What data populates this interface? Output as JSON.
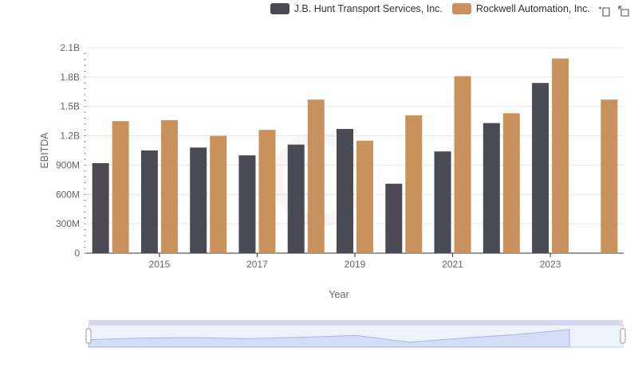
{
  "chart_data": {
    "type": "bar",
    "title": "",
    "xlabel": "Year",
    "ylabel": "EBITDA",
    "ylim": [
      0,
      2100000000
    ],
    "y_ticks": [
      "0",
      "300M",
      "600M",
      "900M",
      "1.2B",
      "1.5B",
      "1.8B",
      "2.1B"
    ],
    "x_tick_labels": [
      "2015",
      "2017",
      "2019",
      "2021",
      "2023"
    ],
    "categories": [
      "2014",
      "2015",
      "2016",
      "2017",
      "2018",
      "2019",
      "2020",
      "2021",
      "2022",
      "2023",
      "2024"
    ],
    "series": [
      {
        "name": "J.B. Hunt Transport Services, Inc.",
        "color": "#4a4a55",
        "values": [
          920000000,
          1050000000,
          1080000000,
          1000000000,
          1110000000,
          1270000000,
          710000000,
          1040000000,
          1330000000,
          1740000000,
          null
        ]
      },
      {
        "name": "Rockwell Automation, Inc.",
        "color": "#c9925c",
        "values": [
          1350000000,
          1360000000,
          1200000000,
          1260000000,
          1570000000,
          1150000000,
          1410000000,
          1810000000,
          1430000000,
          1990000000,
          1570000000
        ]
      }
    ],
    "grid": true,
    "legend_position": "top-right"
  },
  "toolbox": {
    "zoom_icon": "zoom-icon",
    "restore_icon": "zoom-reset-icon"
  }
}
